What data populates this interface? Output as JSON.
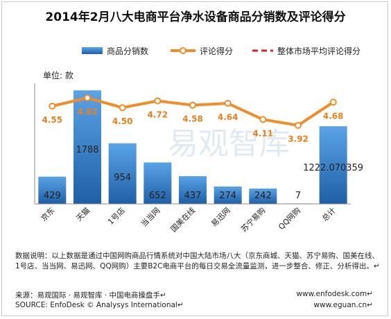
{
  "title": "2014年2月八大电商平台净水设备商品分销数及评论得分",
  "legend": [
    {
      "label": "商品分销数",
      "color": "#2f7cc4"
    },
    {
      "label": "评论得分",
      "color": "#f28c28"
    },
    {
      "label": "整体市场平均评论得分",
      "color": "#e02020"
    }
  ],
  "unit_label": "单位: 款",
  "watermark": "易观智库",
  "note": "数据说明：以上数据是通过中国网购商品行情系统对中国大陆市场八大（京东商城、天猫、苏宁易购、国美在线、1号店、当当网、易迅网、QQ网购）主要B2C电商平台的每日交易全流量监测，进一步整合、修正、分析得出。↵",
  "source_left_1": "来源：易观国际 · 易观智库 · 中国电商操盘手↵",
  "source_left_2": "SOURCE: EnfoDesk © Analysys International↵",
  "source_right_1": "www.enfodesk.com↵",
  "source_right_2": "www.eguan.cn↵",
  "chart_data": {
    "type": "bar",
    "categories": [
      "京东",
      "天猫",
      "1号店",
      "当当网",
      "国美在线",
      "易迅网",
      "苏宁易购",
      "QQ网购",
      "总计"
    ],
    "series": [
      {
        "name": "商品分销数",
        "type": "bar",
        "values": [
          429,
          1788,
          954,
          652,
          437,
          274,
          242,
          7,
          1222.070359
        ],
        "labels": [
          "429",
          "1788",
          "954",
          "652",
          "437",
          "274",
          "242",
          "7",
          "1222.070359"
        ]
      },
      {
        "name": "评论得分",
        "type": "line",
        "values": [
          4.55,
          4.82,
          4.5,
          4.72,
          4.58,
          4.64,
          4.11,
          3.92,
          4.68
        ],
        "labels": [
          "4.55",
          "4.82",
          "4.50",
          "4.72",
          "4.58",
          "4.64",
          "4.11",
          "3.92",
          "4.68"
        ]
      }
    ],
    "colors": {
      "bar_top": "#5aa3e6",
      "bar_bottom": "#1f5fa6",
      "line": "#f28c28",
      "score_label": "#e8801e"
    }
  }
}
